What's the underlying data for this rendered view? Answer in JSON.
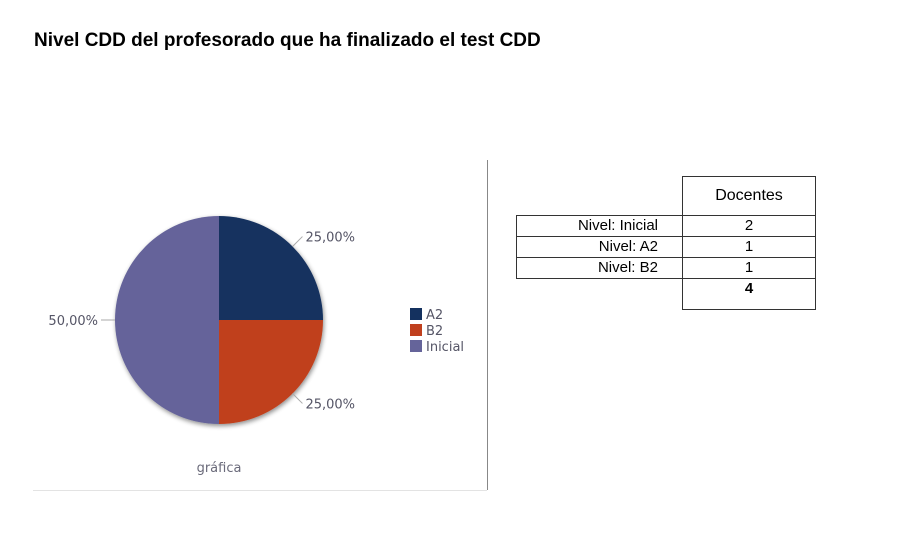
{
  "title": "Nivel CDD del profesorado que ha finalizado el test CDD",
  "chart_data": {
    "type": "pie",
    "categories": [
      "A2",
      "B2",
      "Inicial"
    ],
    "values": [
      25.0,
      25.0,
      50.0
    ],
    "labels": [
      "25,00%",
      "25,00%",
      "50,00%"
    ],
    "colors": [
      "#14315f",
      "#c0401e",
      "#65649a"
    ],
    "legend": [
      "A2",
      "B2",
      "Inicial"
    ],
    "legend_position": "right",
    "caption": "gráfica"
  },
  "table": {
    "header": "Docentes",
    "rows": [
      {
        "label": "Nivel: Inicial",
        "value": "2"
      },
      {
        "label": "Nivel: A2",
        "value": "1"
      },
      {
        "label": "Nivel: B2",
        "value": "1"
      }
    ],
    "total": "4"
  }
}
